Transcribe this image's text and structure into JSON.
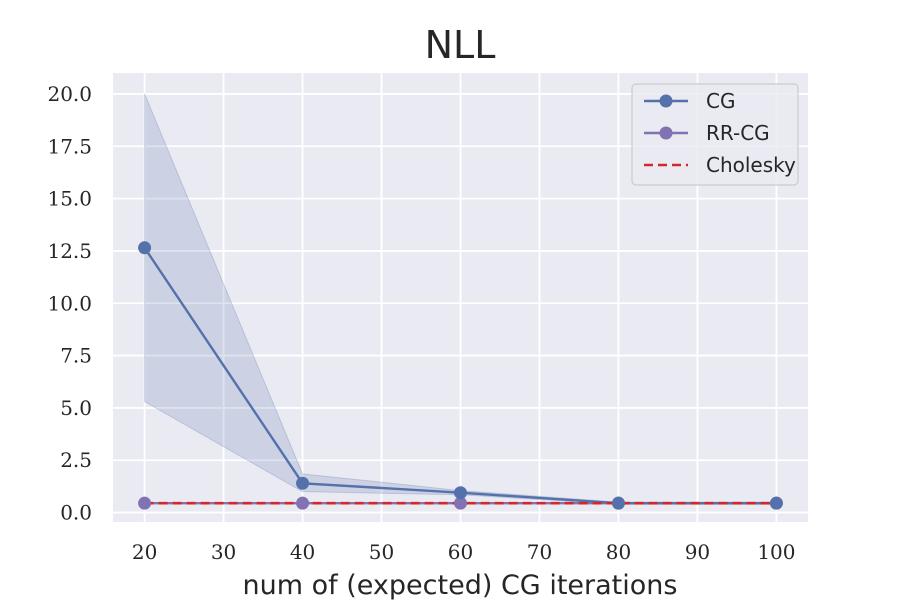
{
  "chart_data": {
    "type": "line",
    "title": "NLL",
    "xlabel": "num of (expected) CG iterations",
    "ylabel": "",
    "xlim": [
      16,
      104
    ],
    "ylim": [
      -0.45,
      21.0
    ],
    "x_ticks": [
      20,
      30,
      40,
      50,
      60,
      70,
      80,
      90,
      100
    ],
    "x_tick_labels": [
      "20",
      "30",
      "40",
      "50",
      "60",
      "70",
      "80",
      "90",
      "100"
    ],
    "y_ticks": [
      0.0,
      2.5,
      5.0,
      7.5,
      10.0,
      12.5,
      15.0,
      17.5,
      20.0
    ],
    "y_tick_labels": [
      "0.0",
      "2.5",
      "5.0",
      "7.5",
      "10.0",
      "12.5",
      "15.0",
      "17.5",
      "20.0"
    ],
    "grid": true,
    "legend_position": "top-right",
    "series": [
      {
        "name": "CG",
        "x": [
          20,
          40,
          60,
          80,
          100
        ],
        "values": [
          12.65,
          1.4,
          0.95,
          0.45,
          0.45
        ],
        "band_lower": [
          5.3,
          1.0,
          0.85,
          0.4,
          0.4
        ],
        "band_upper": [
          20.0,
          1.85,
          1.05,
          0.5,
          0.5
        ],
        "color": "#5471ab",
        "marker": "circle",
        "style": "solid"
      },
      {
        "name": "RR-CG",
        "x": [
          20,
          40,
          60,
          80,
          100
        ],
        "values": [
          0.45,
          0.45,
          0.45,
          0.45,
          0.45
        ],
        "color": "#8172b3",
        "marker": "circle",
        "style": "solid"
      },
      {
        "name": "Cholesky",
        "x": [
          20,
          40,
          60,
          80,
          100
        ],
        "values": [
          0.45,
          0.45,
          0.45,
          0.45,
          0.45
        ],
        "color": "#d62728",
        "marker": "none",
        "style": "dashed"
      }
    ]
  },
  "colors": {
    "plot_background": "#eaeaf2",
    "grid": "#ffffff",
    "text": "#262626",
    "band": "#5471ab"
  }
}
